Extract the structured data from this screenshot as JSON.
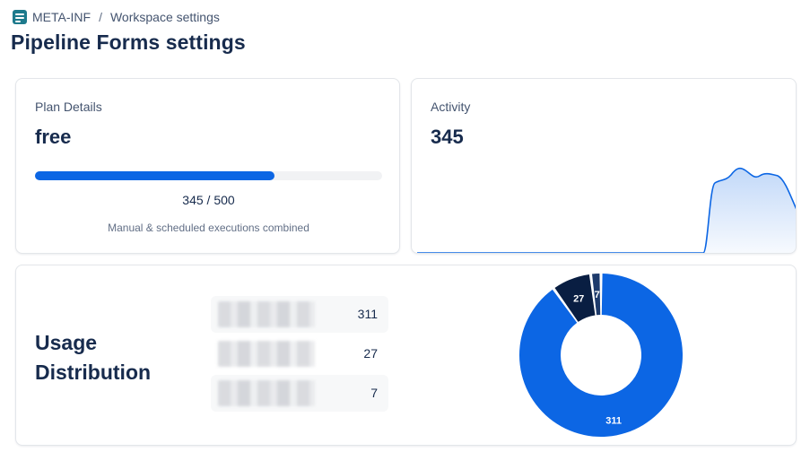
{
  "breadcrumb": {
    "org": "META-INF",
    "separator": "/",
    "page": "Workspace settings"
  },
  "page_title": "Pipeline Forms settings",
  "plan": {
    "label": "Plan Details",
    "name": "free",
    "used": 345,
    "limit": 500,
    "usage_text": "345 / 500",
    "note": "Manual & scheduled executions combined",
    "accent": "#0c66e4"
  },
  "activity": {
    "label": "Activity",
    "value": "345",
    "line_color": "#0c66e4"
  },
  "usage": {
    "title": "Usage Distribution",
    "items": [
      {
        "count": "311",
        "color": "#0c66e4"
      },
      {
        "count": "27",
        "color": "#091e42"
      },
      {
        "count": "7",
        "color": "#1d3a6b"
      }
    ]
  },
  "chart_data": {
    "type": "pie",
    "categories": [
      "",
      "",
      ""
    ],
    "values": [
      311,
      27,
      7
    ],
    "colors": [
      "#0c66e4",
      "#091e42",
      "#1d3a6b"
    ],
    "data_labels": [
      "311",
      "27",
      "7"
    ]
  }
}
